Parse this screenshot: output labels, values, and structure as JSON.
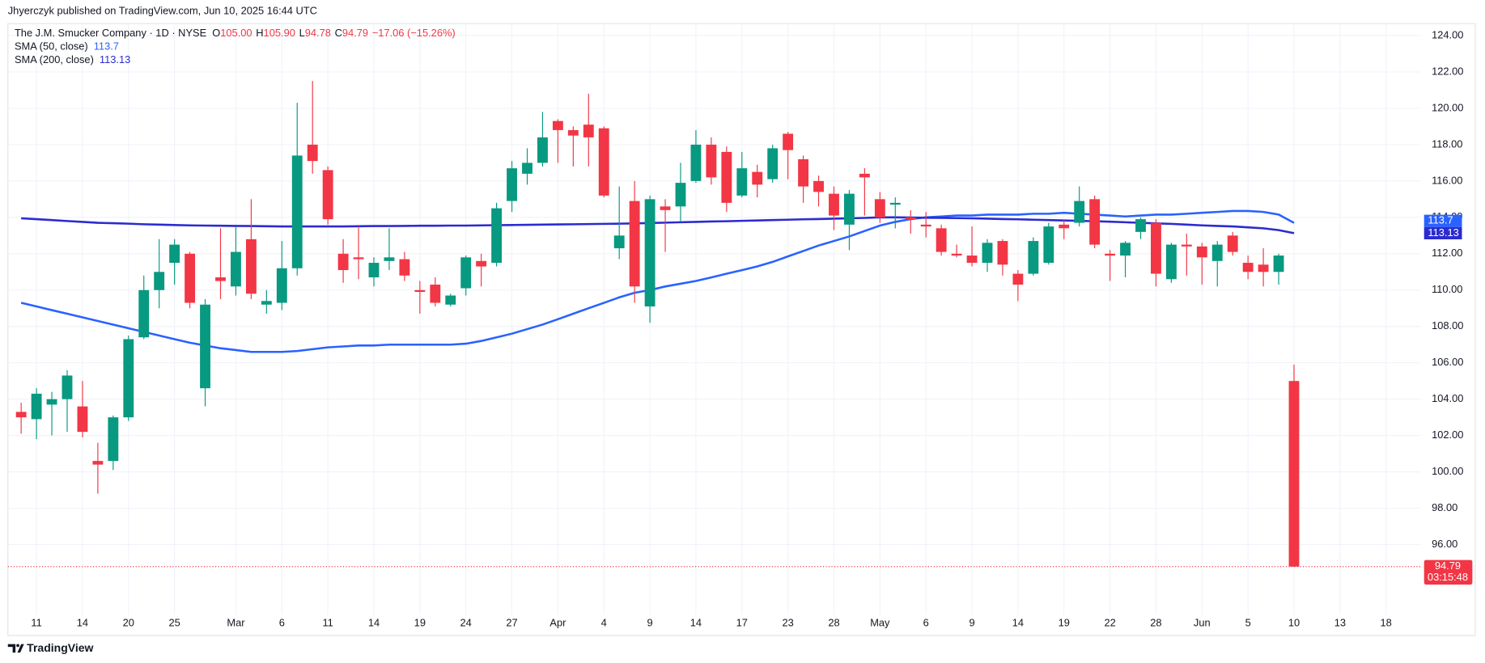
{
  "header": "Jhyerczyk published on TradingView.com, Jun 10, 2025 16:44 UTC",
  "footer": "TradingView",
  "chart_data": {
    "type": "candlestick",
    "legend": {
      "symbol": "The J.M. Smucker Company · 1D · NYSE",
      "ohlc": [
        {
          "key": "O",
          "value": "105.00"
        },
        {
          "key": "H",
          "value": "105.90"
        },
        {
          "key": "L",
          "value": "94.78"
        },
        {
          "key": "C",
          "value": "94.79"
        }
      ],
      "change": "−17.06 (−15.26%)"
    },
    "categories": [
      null,
      "11",
      null,
      null,
      "14",
      null,
      null,
      "20",
      null,
      null,
      "25",
      null,
      null,
      null,
      "Mar",
      null,
      null,
      "6",
      null,
      null,
      "11",
      null,
      null,
      "14",
      null,
      null,
      "19",
      null,
      null,
      "24",
      null,
      null,
      "27",
      null,
      null,
      "Apr",
      null,
      null,
      "4",
      null,
      null,
      "9",
      null,
      null,
      "14",
      null,
      null,
      "17",
      null,
      null,
      "23",
      null,
      null,
      "28",
      null,
      null,
      "May",
      null,
      null,
      "6",
      null,
      null,
      "9",
      null,
      null,
      "14",
      null,
      null,
      "19",
      null,
      null,
      "22",
      null,
      null,
      "28",
      null,
      null,
      "Jun",
      null,
      null,
      "5",
      null,
      null,
      "10",
      null,
      null,
      "13",
      null,
      null,
      "18"
    ],
    "open": [
      103.3,
      102.9,
      103.7,
      104.0,
      103.6,
      100.6,
      100.6,
      103.0,
      107.4,
      110.0,
      111.5,
      112.0,
      104.6,
      110.7,
      110.2,
      112.8,
      109.2,
      109.3,
      111.2,
      118.0,
      116.6,
      112.0,
      111.8,
      110.7,
      111.6,
      111.7,
      110.0,
      110.3,
      109.2,
      110.1,
      111.6,
      111.5,
      114.9,
      116.4,
      117.0,
      119.3,
      118.8,
      119.1,
      118.9,
      112.3,
      114.9,
      109.1,
      114.6,
      114.6,
      116.0,
      118.0,
      117.6,
      115.2,
      116.5,
      116.1,
      118.6,
      117.2,
      116.0,
      115.3,
      113.6,
      116.4,
      115.0,
      114.7,
      114.0,
      113.6,
      113.4,
      112.0,
      111.9,
      111.5,
      112.7,
      110.9,
      110.9,
      111.5,
      113.6,
      113.7,
      115.0,
      112.0,
      111.9,
      113.2,
      113.7,
      110.6,
      112.5,
      112.4,
      111.6,
      113.0,
      111.5,
      111.4,
      111.0,
      105,
      null,
      null,
      null,
      null,
      null,
      null
    ],
    "high": [
      103.8,
      104.6,
      104.4,
      105.6,
      105.0,
      101.6,
      103.1,
      107.5,
      110.8,
      112.8,
      112.8,
      112.1,
      109.5,
      113.4,
      113.5,
      115.0,
      110.0,
      112.7,
      120.3,
      121.5,
      116.8,
      112.8,
      113.5,
      111.8,
      113.4,
      112.1,
      110.5,
      110.7,
      109.8,
      111.9,
      112.0,
      114.8,
      117.1,
      117.8,
      119.8,
      119.4,
      119.0,
      120.8,
      119.0,
      115.7,
      116.0,
      115.2,
      115.0,
      117.0,
      118.8,
      118.4,
      117.9,
      117.6,
      116.9,
      118.0,
      118.7,
      117.4,
      116.3,
      115.7,
      115.5,
      116.7,
      115.4,
      115.1,
      114.4,
      114.3,
      113.6,
      112.5,
      113.5,
      112.8,
      112.8,
      111.1,
      112.9,
      113.7,
      113.9,
      115.7,
      115.2,
      112.2,
      112.7,
      114.0,
      113.9,
      112.6,
      113.1,
      112.6,
      112.7,
      113.2,
      111.9,
      112.3,
      112.0,
      105.9,
      null,
      null,
      null,
      null,
      null,
      null
    ],
    "low": [
      102.1,
      101.8,
      102.0,
      102.2,
      101.9,
      98.8,
      100.1,
      102.8,
      107.3,
      109.0,
      110.3,
      109.0,
      103.6,
      109.5,
      109.7,
      109.5,
      108.7,
      108.9,
      110.8,
      116.4,
      113.6,
      110.4,
      110.6,
      110.2,
      111.1,
      110.5,
      108.7,
      109.1,
      109.1,
      109.7,
      110.2,
      111.3,
      114.3,
      115.8,
      116.8,
      117.0,
      116.8,
      116.8,
      115.1,
      111.7,
      109.3,
      108.2,
      112.1,
      113.8,
      115.9,
      115.8,
      114.3,
      115.1,
      115.1,
      115.9,
      116.1,
      114.8,
      114.6,
      113.3,
      112.2,
      114.1,
      113.7,
      113.4,
      113.1,
      112.9,
      111.9,
      111.8,
      111.3,
      111.0,
      110.8,
      109.4,
      110.8,
      111.4,
      112.8,
      113.5,
      112.3,
      110.5,
      110.7,
      112.8,
      110.2,
      110.4,
      110.8,
      110.3,
      110.2,
      111.9,
      110.6,
      110.2,
      110.3,
      94.78,
      null,
      null,
      null,
      null,
      null,
      null
    ],
    "close": [
      103.0,
      104.3,
      104.0,
      105.3,
      102.2,
      100.4,
      103.0,
      107.3,
      110.0,
      111.0,
      112.5,
      109.3,
      109.2,
      110.5,
      112.1,
      109.8,
      109.4,
      111.2,
      117.4,
      117.1,
      113.9,
      111.1,
      111.7,
      111.5,
      111.8,
      110.8,
      109.9,
      109.3,
      109.7,
      111.8,
      111.3,
      114.5,
      116.7,
      117.0,
      118.4,
      118.8,
      118.5,
      118.4,
      115.2,
      113.0,
      110.2,
      115.0,
      114.4,
      115.9,
      118.0,
      116.2,
      114.8,
      116.7,
      115.8,
      117.8,
      117.7,
      115.7,
      115.4,
      114.1,
      115.3,
      116.2,
      114.0,
      114.8,
      113.9,
      113.5,
      112.1,
      111.9,
      111.5,
      112.6,
      111.4,
      110.3,
      112.7,
      113.5,
      113.4,
      114.9,
      112.5,
      111.9,
      112.6,
      113.9,
      110.9,
      112.5,
      112.4,
      111.8,
      112.5,
      112.1,
      111.0,
      111.0,
      111.9,
      94.79,
      null,
      null,
      null,
      null,
      null,
      null
    ],
    "up_color": "#089981",
    "down_color": "#f23645",
    "countdown": "03:15:48",
    "series": [
      {
        "name": "SMA (50, close)",
        "color": "#2962ff",
        "values": [
          109.3,
          109.1,
          108.9,
          108.7,
          108.5,
          108.3,
          108.1,
          107.9,
          107.7,
          107.5,
          107.3,
          107.1,
          106.95,
          106.8,
          106.7,
          106.6,
          106.6,
          106.6,
          106.65,
          106.75,
          106.85,
          106.9,
          106.95,
          106.95,
          107.0,
          107.0,
          107.0,
          107.0,
          107.0,
          107.05,
          107.2,
          107.4,
          107.6,
          107.85,
          108.1,
          108.4,
          108.7,
          109.0,
          109.3,
          109.6,
          109.85,
          110.0,
          110.2,
          110.35,
          110.5,
          110.7,
          110.9,
          111.1,
          111.3,
          111.55,
          111.85,
          112.15,
          112.45,
          112.7,
          112.95,
          113.25,
          113.55,
          113.75,
          113.9,
          114.0,
          114.05,
          114.1,
          114.1,
          114.15,
          114.15,
          114.15,
          114.2,
          114.2,
          114.25,
          114.2,
          114.15,
          114.1,
          114.05,
          114.1,
          114.15,
          114.15,
          114.2,
          114.25,
          114.3,
          114.35,
          114.35,
          114.3,
          114.15,
          113.7,
          null,
          null,
          null,
          null,
          null,
          null
        ]
      },
      {
        "name": "SMA (200, close)",
        "color": "#2b2bd0",
        "values": [
          113.95,
          113.9,
          113.85,
          113.8,
          113.75,
          113.7,
          113.68,
          113.65,
          113.62,
          113.6,
          113.58,
          113.56,
          113.55,
          113.54,
          113.53,
          113.52,
          113.51,
          113.5,
          113.5,
          113.5,
          113.5,
          113.5,
          113.51,
          113.52,
          113.52,
          113.53,
          113.54,
          113.54,
          113.55,
          113.55,
          113.56,
          113.57,
          113.58,
          113.59,
          113.6,
          113.61,
          113.62,
          113.63,
          113.64,
          113.65,
          113.67,
          113.69,
          113.71,
          113.73,
          113.75,
          113.77,
          113.79,
          113.81,
          113.83,
          113.85,
          113.87,
          113.89,
          113.91,
          113.93,
          113.95,
          113.97,
          114.0,
          114.0,
          113.99,
          113.98,
          113.97,
          113.96,
          113.95,
          113.93,
          113.91,
          113.89,
          113.87,
          113.85,
          113.83,
          113.81,
          113.79,
          113.76,
          113.73,
          113.7,
          113.67,
          113.64,
          113.6,
          113.56,
          113.53,
          113.5,
          113.45,
          113.4,
          113.3,
          113.13,
          null,
          null,
          null,
          null,
          null,
          null
        ]
      }
    ],
    "ylim": [
      92.4,
      124.5
    ],
    "yticks": [
      {
        "value": 96,
        "label": "96.00"
      },
      {
        "value": 98,
        "label": "98.00"
      },
      {
        "value": 100,
        "label": "100.00"
      },
      {
        "value": 102,
        "label": "102.00"
      },
      {
        "value": 104,
        "label": "104.00"
      },
      {
        "value": 106,
        "label": "106.00"
      },
      {
        "value": 108,
        "label": "108.00"
      },
      {
        "value": 110,
        "label": "110.00"
      },
      {
        "value": 112,
        "label": "112.00"
      },
      {
        "value": 114,
        "label": "114.00"
      },
      {
        "value": 116,
        "label": "116.00"
      },
      {
        "value": 118,
        "label": "118.00"
      },
      {
        "value": 120,
        "label": "120.00"
      },
      {
        "value": 122,
        "label": "122.00"
      },
      {
        "value": 124,
        "label": "124.00"
      }
    ],
    "grid": true
  }
}
